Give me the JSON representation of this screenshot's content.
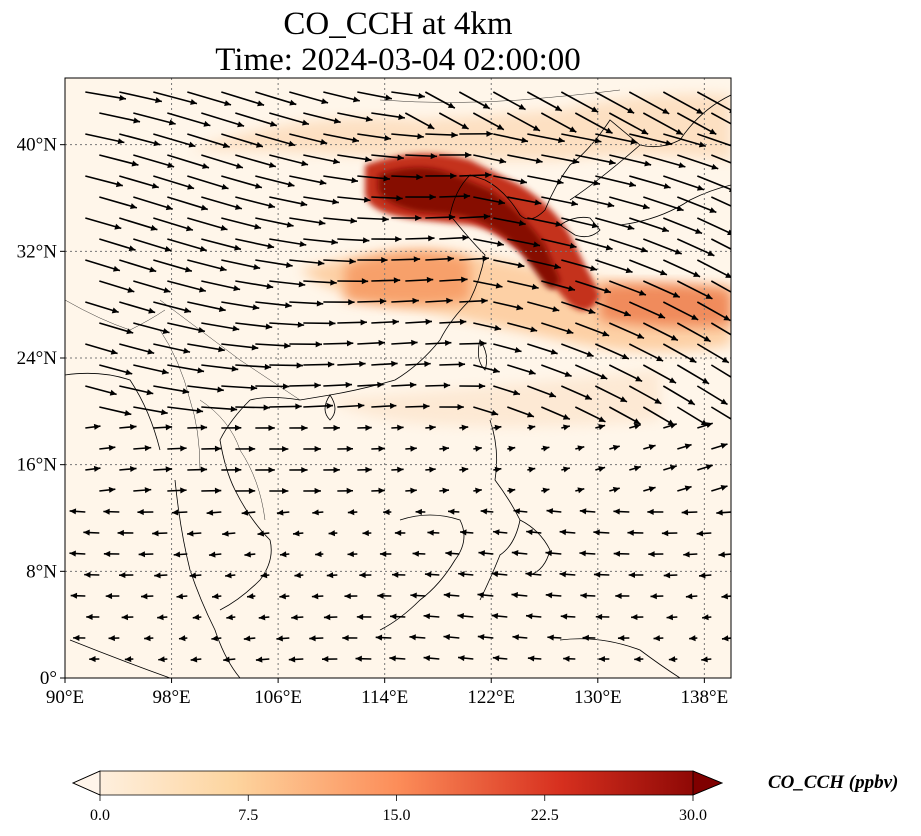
{
  "title": {
    "line1": "CO_CCH at 4km",
    "line2": "Time: 2024-03-04 02:00:00"
  },
  "map": {
    "lon_range": [
      90,
      140
    ],
    "lat_range": [
      0,
      45
    ],
    "lon_ticks": [
      {
        "value": 90,
        "label": "90°E"
      },
      {
        "value": 98,
        "label": "98°E"
      },
      {
        "value": 106,
        "label": "106°E"
      },
      {
        "value": 114,
        "label": "114°E"
      },
      {
        "value": 122,
        "label": "122°E"
      },
      {
        "value": 130,
        "label": "130°E"
      },
      {
        "value": 138,
        "label": "138°E"
      }
    ],
    "lat_ticks": [
      {
        "value": 0,
        "label": "0°"
      },
      {
        "value": 8,
        "label": "8°N"
      },
      {
        "value": 16,
        "label": "16°N"
      },
      {
        "value": 24,
        "label": "24°N"
      },
      {
        "value": 32,
        "label": "32°N"
      },
      {
        "value": 40,
        "label": "40°N"
      }
    ],
    "gridlines": true,
    "colormap": [
      "#fff5eb",
      "#fdd49e",
      "#fc8d59",
      "#d7301f",
      "#7f0000"
    ]
  },
  "colorbar": {
    "label": "CO_CCH (ppbv)",
    "min": 0,
    "max": 30,
    "extend": "both",
    "ticks": [
      {
        "value": 0,
        "label": "0.0"
      },
      {
        "value": 7.5,
        "label": "7.5"
      },
      {
        "value": 15,
        "label": "15.0"
      },
      {
        "value": 22.5,
        "label": "22.5"
      },
      {
        "value": 30,
        "label": "30.0"
      }
    ]
  }
}
